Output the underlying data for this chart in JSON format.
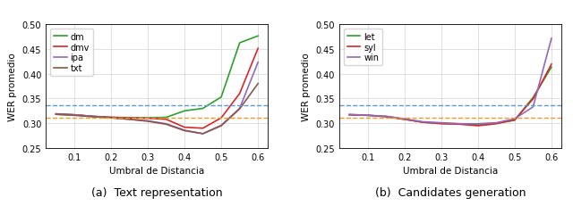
{
  "x": [
    0.05,
    0.1,
    0.15,
    0.2,
    0.25,
    0.3,
    0.35,
    0.4,
    0.45,
    0.5,
    0.55,
    0.6
  ],
  "left_dm": [
    0.318,
    0.317,
    0.314,
    0.312,
    0.311,
    0.311,
    0.312,
    0.325,
    0.33,
    0.353,
    0.462,
    0.476
  ],
  "left_dmv": [
    0.319,
    0.317,
    0.314,
    0.312,
    0.311,
    0.31,
    0.308,
    0.292,
    0.29,
    0.311,
    0.36,
    0.451
  ],
  "left_ipa": [
    0.318,
    0.317,
    0.314,
    0.311,
    0.308,
    0.305,
    0.299,
    0.286,
    0.279,
    0.296,
    0.33,
    0.423
  ],
  "left_txt": [
    0.318,
    0.316,
    0.313,
    0.311,
    0.308,
    0.304,
    0.298,
    0.285,
    0.279,
    0.295,
    0.329,
    0.38
  ],
  "right_let": [
    0.317,
    0.316,
    0.314,
    0.308,
    0.302,
    0.3,
    0.299,
    0.298,
    0.3,
    0.306,
    0.352,
    0.413
  ],
  "right_syl": [
    0.317,
    0.316,
    0.313,
    0.308,
    0.302,
    0.299,
    0.298,
    0.295,
    0.299,
    0.307,
    0.349,
    0.419
  ],
  "right_win": [
    0.318,
    0.316,
    0.314,
    0.309,
    0.303,
    0.301,
    0.299,
    0.299,
    0.301,
    0.309,
    0.333,
    0.471
  ],
  "hline_blue": 0.336,
  "hline_orange": 0.311,
  "left_colors": {
    "dm": "#2ca02c",
    "dmv": "#d62728",
    "ipa": "#9467bd",
    "txt": "#8c564b"
  },
  "right_colors": {
    "let": "#2ca02c",
    "syl": "#d62728",
    "win": "#9467bd"
  },
  "hline_blue_color": "#5b9bd5",
  "hline_orange_color": "#ed9c28",
  "ylabel": "WER promedio",
  "xlabel": "Umbral de Distancia",
  "ylim": [
    0.25,
    0.5
  ],
  "yticks": [
    0.25,
    0.3,
    0.35,
    0.4,
    0.45,
    0.5
  ],
  "xticks": [
    0.1,
    0.2,
    0.3,
    0.4,
    0.5,
    0.6
  ],
  "caption_left": "(a)  Text representation",
  "caption_right": "(b)  Candidates generation"
}
